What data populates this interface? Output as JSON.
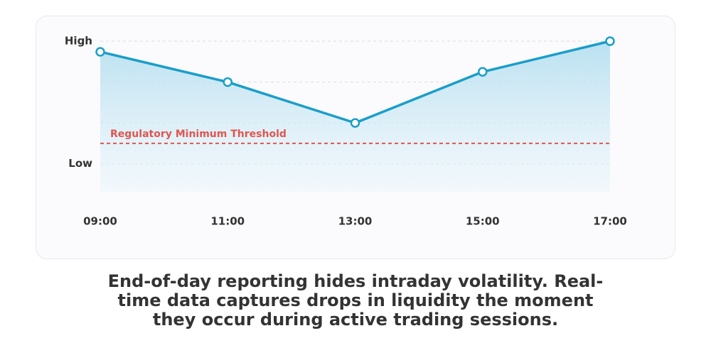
{
  "chart_data": {
    "type": "line",
    "categories": [
      "09:00",
      "11:00",
      "13:00",
      "15:00",
      "17:00"
    ],
    "values": [
      2.74,
      2.0,
      1.0,
      2.25,
      3.0
    ],
    "color": "#1a9ec9",
    "ylim": [
      -0.7,
      3.0
    ],
    "yticks": [
      {
        "value": 0,
        "label": "Low"
      },
      {
        "value": 3,
        "label": "High"
      }
    ],
    "gridlines": [
      1,
      2
    ],
    "threshold": {
      "value": 0.5,
      "label": "Regulatory Minimum Threshold",
      "color": "#e0564f"
    },
    "area": true
  },
  "caption": "End-of-day reporting hides intraday volatility. Real-time data captures drops in liquidity the moment they occur during active trading sessions."
}
